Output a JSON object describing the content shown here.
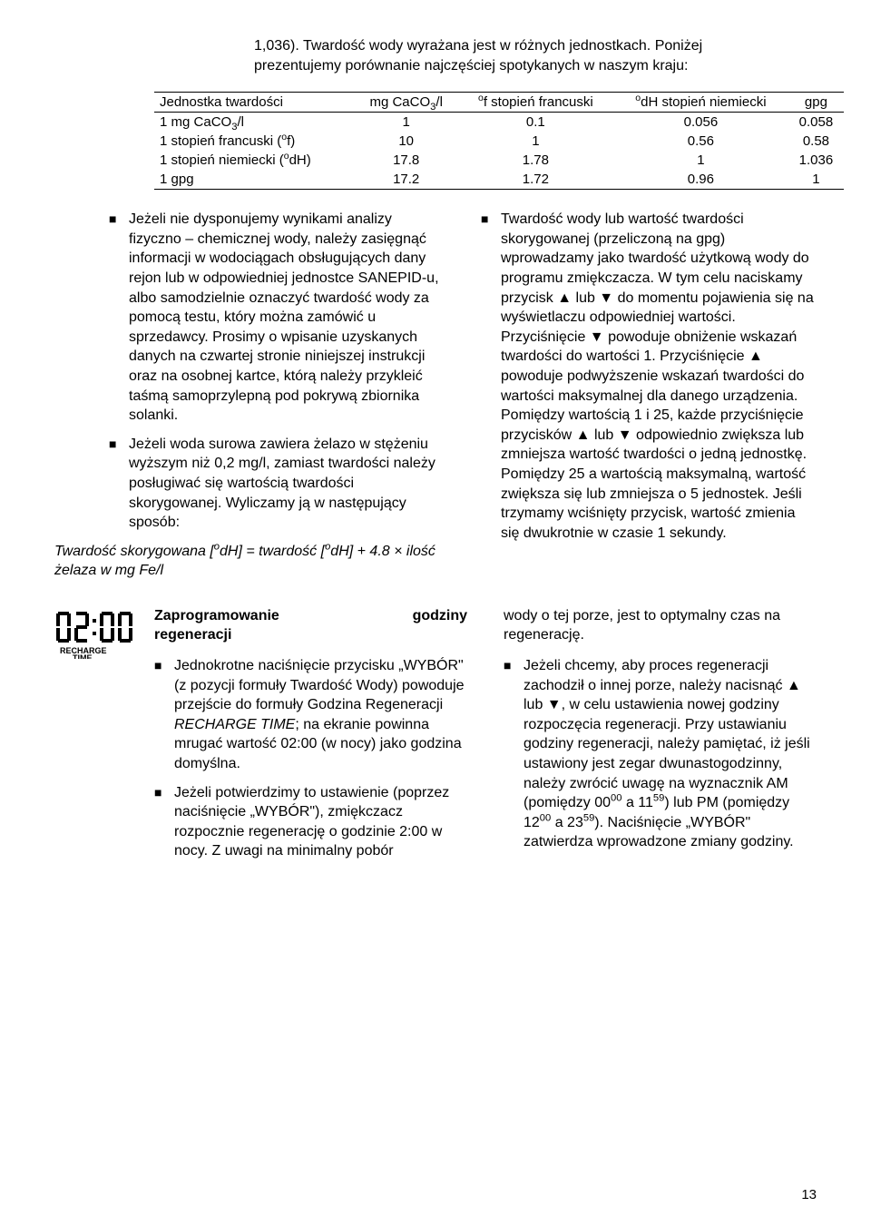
{
  "intro": "1,036). Twardość wody wyrażana jest w różnych jednostkach. Poniżej prezentujemy porównanie najczęściej spotykanych w naszym kraju:",
  "table": {
    "headers": {
      "c0": "Jednostka twardości",
      "c1_html": "mg CaCO<sub>3</sub>/l",
      "c2_html": "<sup>o</sup>f stopień francuski",
      "c3_html": "<sup>o</sup>dH stopień niemiecki",
      "c4": "gpg"
    },
    "rows": [
      {
        "c0_html": "1 mg CaCO<sub>3</sub>/l",
        "c1": "1",
        "c2": "0.1",
        "c3": "0.056",
        "c4": "0.058"
      },
      {
        "c0_html": "1 stopień francuski (<sup>o</sup>f)",
        "c1": "10",
        "c2": "1",
        "c3": "0.56",
        "c4": "0.58"
      },
      {
        "c0_html": "1 stopień niemiecki (<sup>o</sup>dH)",
        "c1": "17.8",
        "c2": "1.78",
        "c3": "1",
        "c4": "1.036"
      },
      {
        "c0_html": "1 gpg",
        "c1": "17.2",
        "c2": "1.72",
        "c3": "0.96",
        "c4": "1"
      }
    ]
  },
  "left_bullets": [
    "Jeżeli nie dysponujemy wynikami analizy fizyczno – chemicznej wody, należy zasięgnąć informacji w wodociągach obsługujących dany rejon lub w odpowiedniej jednostce SANEPID-u, albo samodzielnie oznaczyć twardość wody za pomocą testu, który można zamówić u sprzedawcy. Prosimy o wpisanie uzyskanych danych na czwartej stronie niniejszej instrukcji oraz na osobnej kartce, którą należy przykleić taśmą samoprzylepną pod pokrywą zbiornika solanki.",
    "Jeżeli woda surowa zawiera żelazo w stężeniu wyższym niż 0,2 mg/l, zamiast twardości należy posługiwać się wartością twardości skorygowanej. Wyliczamy ją w następujący sposób:"
  ],
  "formula_html": "Twardość skorygowana [<sup>o</sup>dH] = twardość [<sup>o</sup>dH] + 4.8 × ilość żelaza w mg Fe/l",
  "right_bullets": [
    "Twardość wody lub wartość twardości skorygowanej (przeliczoną na gpg) wprowadzamy jako twardość użytkową wody do programu zmiękczacza. W tym celu naciskamy przycisk ▲ lub ▼ do momentu pojawienia się na wyświetlaczu odpowiedniej wartości. Przyciśnięcie ▼ powoduje obniżenie wskazań twardości do wartości 1. Przyciśnięcie ▲ powoduje podwyższenie wskazań twardości do wartości maksymalnej dla danego urządzenia. Pomiędzy wartością 1 i 25, każde przyciśnięcie przycisków ▲ lub ▼ odpowiednio zwiększa lub zmniejsza wartość twardości o jedną jednostkę. Pomiędzy 25 a wartością maksymalną, wartość zwiększa się lub zmniejsza o 5 jednostek. Jeśli trzymamy wciśnięty przycisk, wartość zmienia się dwukrotnie w czasie 1 sekundy."
  ],
  "section2": {
    "title_left": "Zaprogramowanie",
    "title_right_word": "godziny",
    "title_line2": "regeneracji",
    "icon_label": "RECHARGE TIME",
    "icon_time": "02:00",
    "left_bullets_html": [
      "Jednokrotne naciśnięcie przycisku „WYBÓR\" (z pozycji formuły Twardość Wody) powoduje przejście do formuły Godzina Regeneracji <i>RECHARGE TIME</i>; na ekranie powinna mrugać wartość 02:00 (w nocy) jako godzina domyślna.",
      "Jeżeli potwierdzimy to ustawienie (poprzez naciśnięcie „WYBÓR\"), zmiękczacz rozpocznie regenerację o godzinie 2:00 w nocy. Z uwagi na minimalny pobór"
    ],
    "right_top": "wody o tej porze, jest to optymalny czas na regenerację.",
    "right_bullets_html": [
      "Jeżeli chcemy, aby proces regeneracji zachodził o innej porze, należy nacisnąć ▲ lub ▼, w celu ustawienia nowej godziny rozpoczęcia regeneracji. Przy ustawianiu godziny regeneracji, należy pamiętać, iż jeśli ustawiony jest zegar dwunastogodzinny, należy zwrócić uwagę na wyznacznik AM (pomiędzy 00<sup>00</sup> a 11<sup>59</sup>) lub PM (pomiędzy 12<sup>00</sup> a 23<sup>59</sup>). Naciśnięcie „WYBÓR\" zatwierdza wprowadzone zmiany godziny."
    ]
  },
  "page_number": "13"
}
